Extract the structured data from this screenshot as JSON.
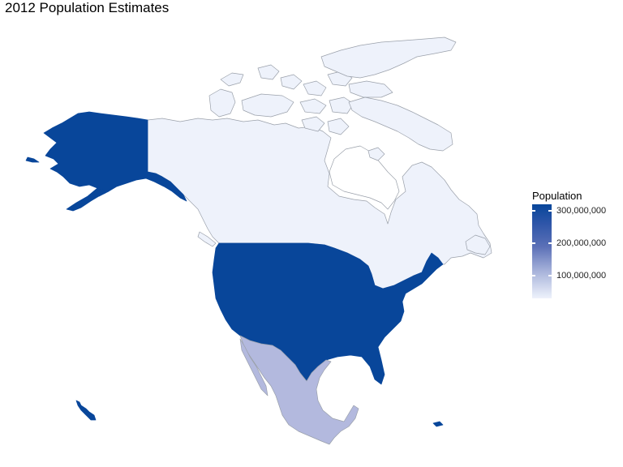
{
  "title": "2012 Population Estimates",
  "legend": {
    "title": "Population",
    "labels": [
      "300,000,000",
      "200,000,000",
      "100,000,000"
    ],
    "scale_colors": {
      "low": "#eef2fb",
      "high": "#08469a"
    }
  },
  "regions": [
    {
      "name": "Canada",
      "population": 34750000,
      "color": "#eef2fb"
    },
    {
      "name": "United States",
      "population": 314000000,
      "color": "#08469a"
    },
    {
      "name": "Mexico",
      "population": 117000000,
      "color": "#b3b9de"
    }
  ],
  "colors": {
    "border": "#9aa0aa",
    "canada": "#eef2fb",
    "usa": "#08469a",
    "mexico": "#b3b9de"
  }
}
